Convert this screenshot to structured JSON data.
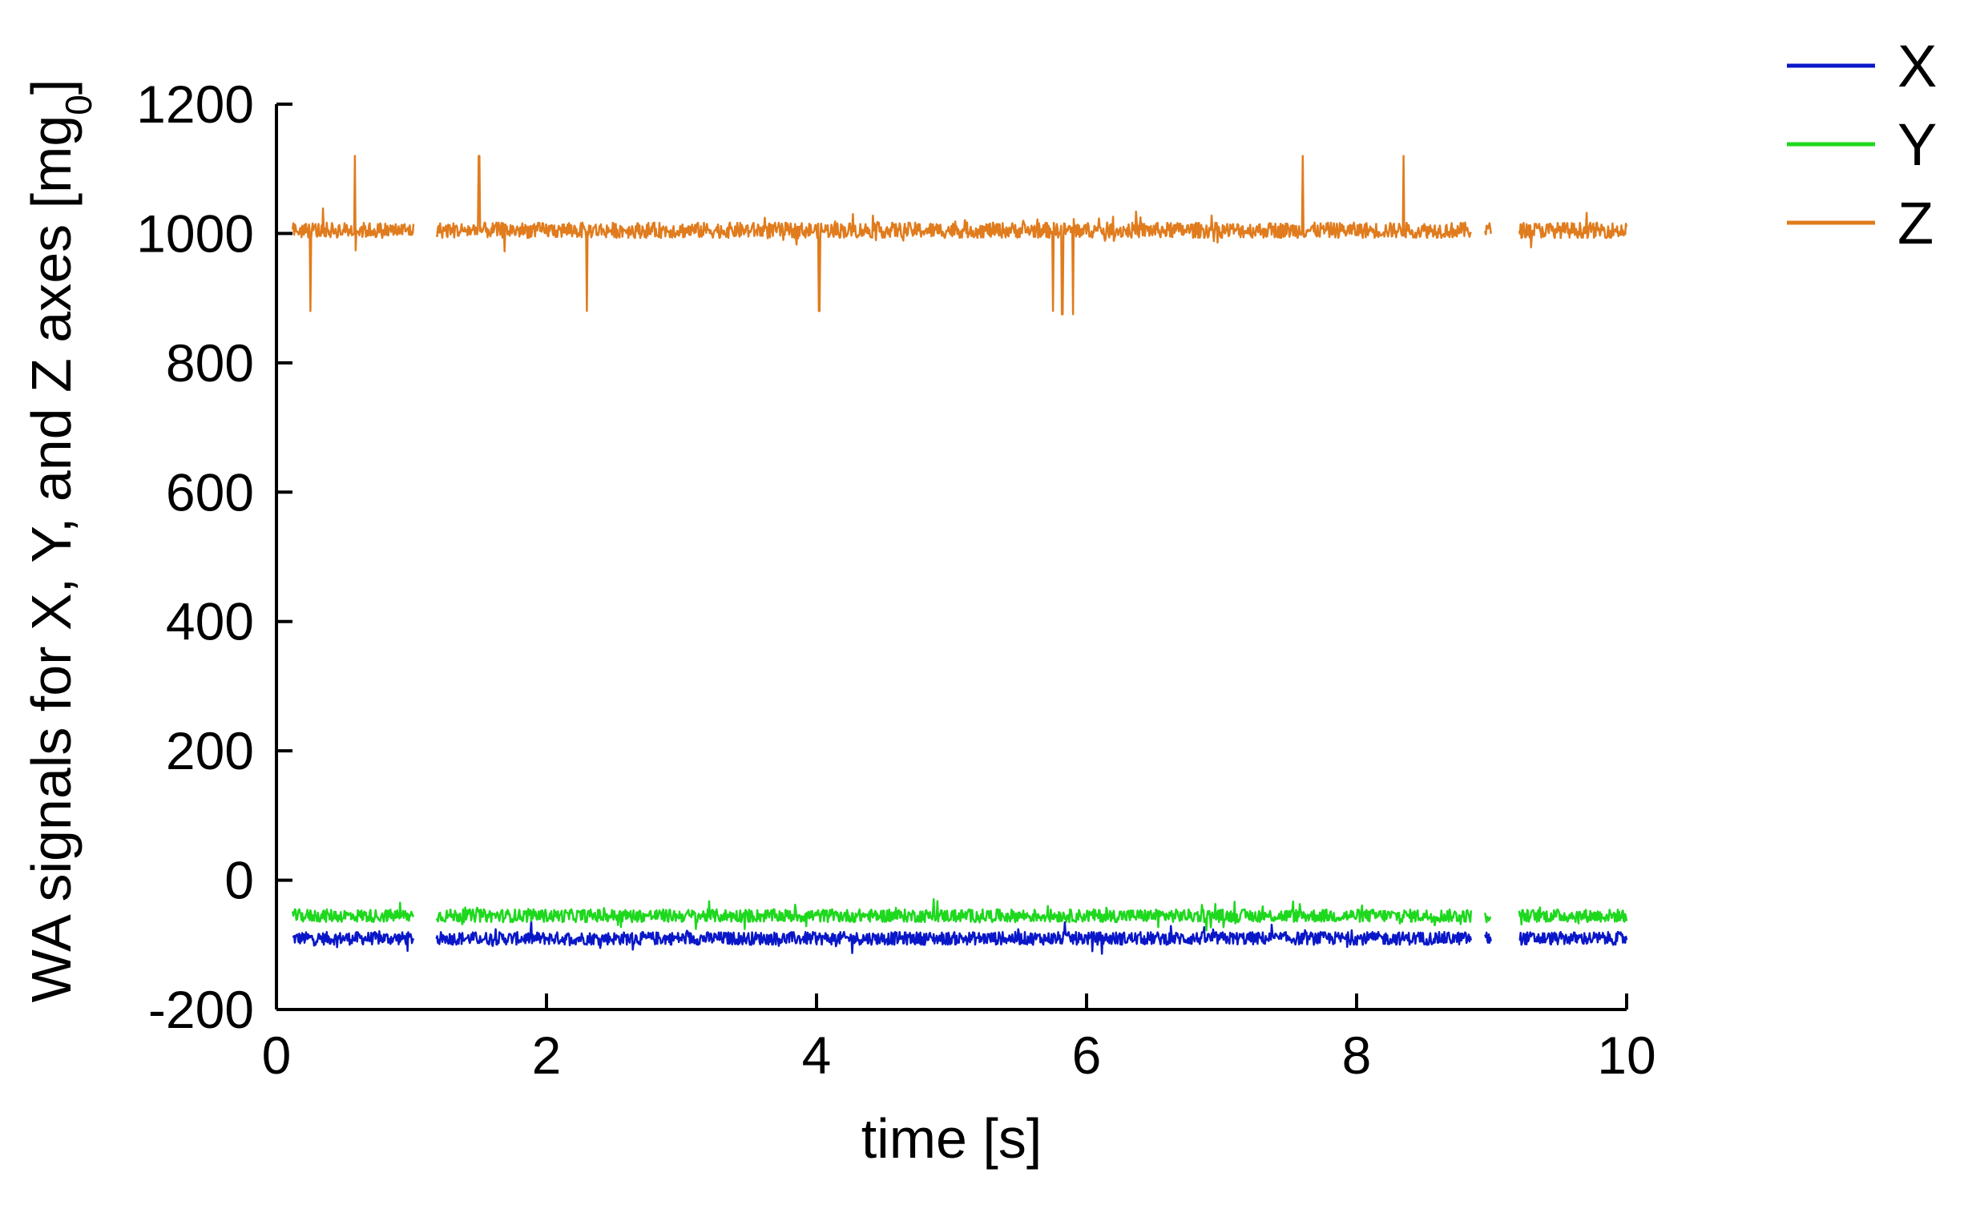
{
  "chart_data": {
    "type": "line",
    "title": "",
    "xlabel": "time [s]",
    "ylabel_main": "WA signals for X, Y, and Z axes [mg",
    "ylabel_sub": "0",
    "ylabel_close": "]",
    "xlim": [
      0,
      10
    ],
    "ylim": [
      -200,
      1200
    ],
    "x_ticks": [
      0,
      2,
      4,
      6,
      8,
      10
    ],
    "y_ticks": [
      -200,
      0,
      200,
      400,
      600,
      800,
      1000,
      1200
    ],
    "x_tick_labels": [
      "0",
      "2",
      "4",
      "6",
      "8",
      "10"
    ],
    "y_tick_labels": [
      "-200",
      "0",
      "200",
      "400",
      "600",
      "800",
      "1000",
      "1200"
    ],
    "grid": false,
    "legend_position": "top-right outside",
    "series": [
      {
        "name": "X",
        "color": "#0a17c8",
        "baseline": -90,
        "noise": 10,
        "spikes": []
      },
      {
        "name": "Y",
        "color": "#1ed81e",
        "baseline": -55,
        "noise": 10,
        "spikes": []
      },
      {
        "name": "Z",
        "color": "#e07c1e",
        "baseline": 1005,
        "noise": 12,
        "spikes": [
          {
            "x": 0.25,
            "y": 880
          },
          {
            "x": 0.58,
            "y": 1120
          },
          {
            "x": 1.5,
            "y": 1120
          },
          {
            "x": 2.3,
            "y": 880
          },
          {
            "x": 4.02,
            "y": 880
          },
          {
            "x": 5.75,
            "y": 880
          },
          {
            "x": 5.82,
            "y": 875
          },
          {
            "x": 5.9,
            "y": 875
          },
          {
            "x": 7.6,
            "y": 1120
          },
          {
            "x": 8.35,
            "y": 1120
          }
        ]
      }
    ],
    "gaps": [
      [
        1.02,
        1.18
      ],
      [
        8.85,
        8.95
      ],
      [
        9.0,
        9.2
      ]
    ]
  }
}
